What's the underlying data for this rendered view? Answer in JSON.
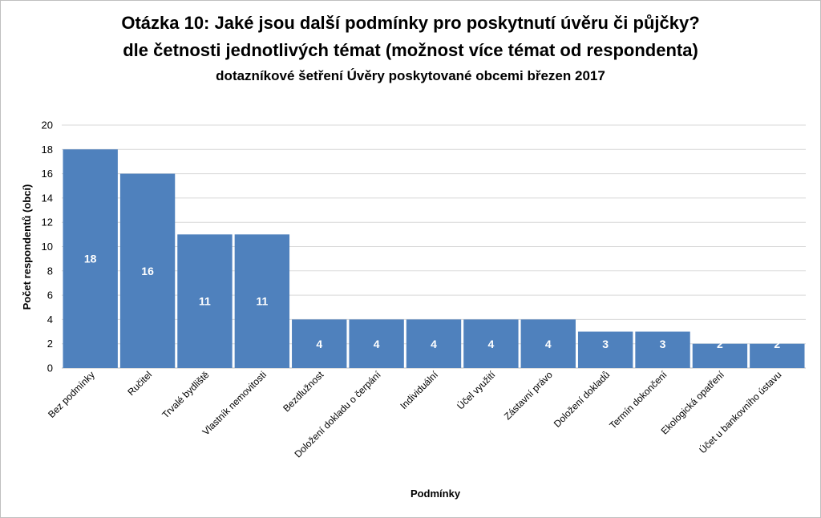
{
  "chart_data": {
    "type": "bar",
    "title": "Otázka 10: Jaké jsou další podmínky pro poskytnutí úvěru či půjčky?",
    "subtitle": "dle četnosti jednotlivých témat (možnost více témat od respondenta)",
    "subtitle2": "dotazníkové šetření Úvěry poskytované obcemi březen 2017",
    "xlabel": "Podmínky",
    "ylabel": "Počet respondentů (obcí)",
    "ylim": [
      0,
      20
    ],
    "yticks": [
      "0",
      "2",
      "4",
      "6",
      "8",
      "10",
      "12",
      "14",
      "16",
      "18",
      "20"
    ],
    "grid": true,
    "bar_color": "#4f81bd",
    "categories": [
      "Bez podmínky",
      "Ručitel",
      "Trvalé bydliště",
      "Vlastník nemovitosti",
      "Bezdlužnost",
      "Doložení dokladu o čerpání",
      "Individuální",
      "Účel využití",
      "Zástavní právo",
      "Doložení dokladů",
      "Termín dokončení",
      "Ekologická opatření",
      "Účet u bankovního ústavu"
    ],
    "values": [
      18,
      16,
      11,
      11,
      4,
      4,
      4,
      4,
      4,
      3,
      3,
      2,
      2
    ]
  }
}
